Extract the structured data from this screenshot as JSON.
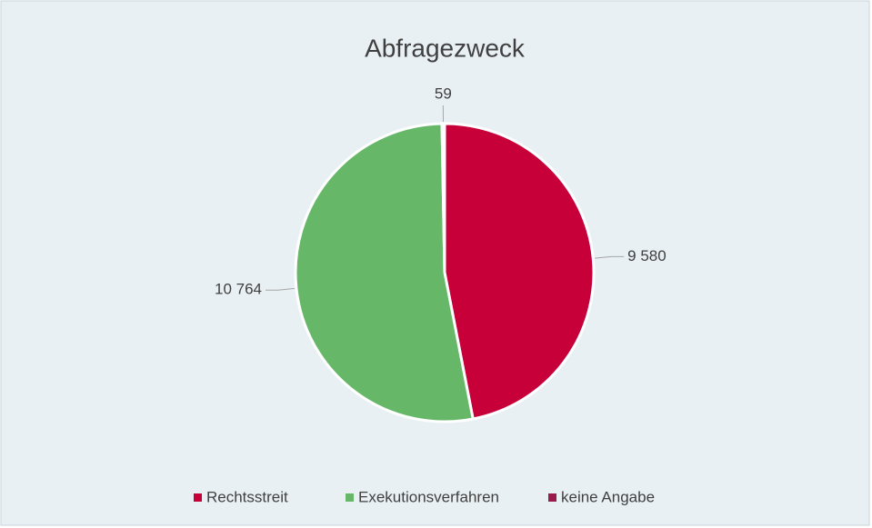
{
  "chart_data": {
    "type": "pie",
    "title": "Abfragezweck",
    "categories": [
      "Rechtsstreit",
      "Exekutionsverfahren",
      "keine Angabe"
    ],
    "values": [
      9580,
      10764,
      59
    ],
    "value_labels": [
      "9 580",
      "10 764",
      "59"
    ],
    "colors": [
      "#c8003a",
      "#66b868",
      "#9a1a4c"
    ],
    "legend": "bottom"
  }
}
